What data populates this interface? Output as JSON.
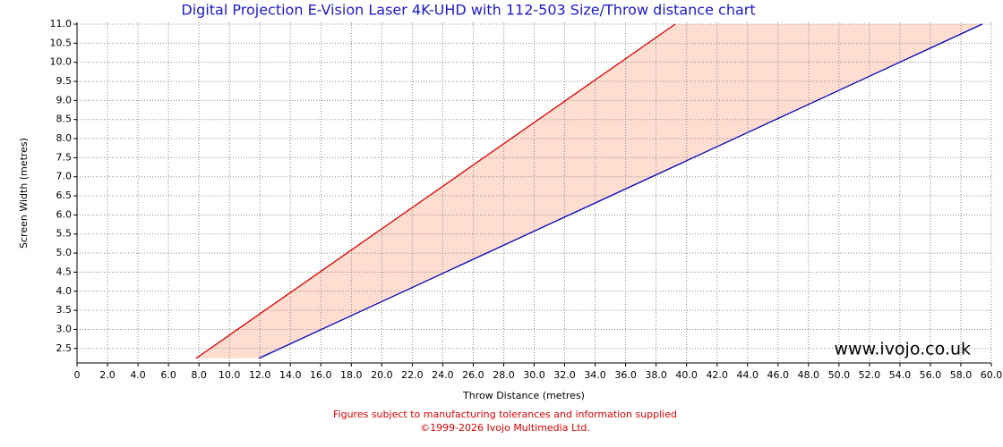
{
  "chart_data": {
    "type": "line",
    "title": "Digital Projection E-Vision Laser 4K-UHD with 112-503 Size/Throw distance chart",
    "x_label": "Throw Distance (metres)",
    "y_label": "Screen Width (metres)",
    "watermark": "www.ivojo.co.uk",
    "footer": [
      "Figures subject to manufacturing tolerances and information supplied",
      "©1999-2026 Ivojo Multimedia Ltd."
    ],
    "series": [
      {
        "color": "#dd0000",
        "x": [
          7.81,
          39.25
        ],
        "values": [
          2.24,
          11.0
        ]
      },
      {
        "color": "#0000bb",
        "x": [
          11.93,
          59.4
        ],
        "values": [
          2.24,
          11.0
        ]
      }
    ],
    "fill_color": "#ffddd0",
    "grid": true,
    "xlim": [
      0,
      60
    ],
    "ylim": [
      2.12,
      11.0
    ],
    "xticks": [
      0,
      {
        "value": 2,
        "label": "2.0"
      },
      {
        "value": 4,
        "label": "4.0"
      },
      {
        "value": 6,
        "label": "6.0"
      },
      {
        "value": 8,
        "label": "8.0"
      },
      {
        "value": 10,
        "label": "10.0"
      },
      {
        "value": 12,
        "label": "12.0"
      },
      {
        "value": 14,
        "label": "14.0"
      },
      {
        "value": 16,
        "label": "16.0"
      },
      {
        "value": 18,
        "label": "18.0"
      },
      {
        "value": 20,
        "label": "20.0"
      },
      {
        "value": 22,
        "label": "22.0"
      },
      {
        "value": 24,
        "label": "24.0"
      },
      {
        "value": 26,
        "label": "26.0"
      },
      {
        "value": 28,
        "label": "28.0"
      },
      {
        "value": 30,
        "label": "30.0"
      },
      {
        "value": 32,
        "label": "32.0"
      },
      {
        "value": 34,
        "label": "34.0"
      },
      {
        "value": 36,
        "label": "36.0"
      },
      {
        "value": 38,
        "label": "38.0"
      },
      {
        "value": 40,
        "label": "40.0"
      },
      {
        "value": 42,
        "label": "42.0"
      },
      {
        "value": 44,
        "label": "44.0"
      },
      {
        "value": 46,
        "label": "46.0"
      },
      {
        "value": 48,
        "label": "48.0"
      },
      {
        "value": 50,
        "label": "50.0"
      },
      {
        "value": 52,
        "label": "52.0"
      },
      {
        "value": 54,
        "label": "54.0"
      },
      {
        "value": 56,
        "label": "56.0"
      },
      {
        "value": 58,
        "label": "58.0"
      },
      {
        "value": 60,
        "label": "60.0"
      }
    ],
    "yticks": [
      2.5,
      {
        "value": 3,
        "label": "3.0"
      },
      3.5,
      {
        "value": 4,
        "label": "4.0"
      },
      4.5,
      {
        "value": 5,
        "label": "5.0"
      },
      5.5,
      {
        "value": 6,
        "label": "6.0"
      },
      6.5,
      {
        "value": 7,
        "label": "7.0"
      },
      7.5,
      {
        "value": 8,
        "label": "8.0"
      },
      8.5,
      {
        "value": 9,
        "label": "9.0"
      },
      9.5,
      {
        "value": 10,
        "label": "10.0"
      },
      10.5,
      {
        "value": 11,
        "label": "11.0"
      }
    ]
  }
}
